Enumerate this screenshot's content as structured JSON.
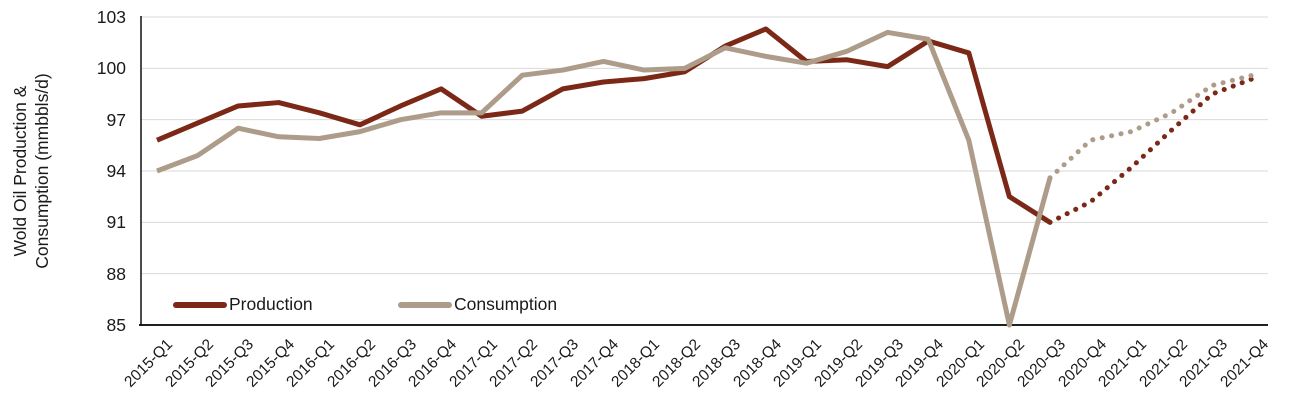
{
  "chart_data": {
    "type": "line",
    "title": "",
    "ylabel_line1": "Wold Oil Production &",
    "ylabel_line2": "Consumption (mmbbls/d)",
    "ylim": [
      85,
      103
    ],
    "yticks": [
      103,
      100,
      97,
      94,
      91,
      88,
      85
    ],
    "grid": "horizontal gridlines on, light gray",
    "legend_position": "inside bottom-left",
    "categories": [
      "2015-Q1",
      "2015-Q2",
      "2015-Q3",
      "2015-Q4",
      "2016-Q1",
      "2016-Q2",
      "2016-Q3",
      "2016-Q4",
      "2017-Q1",
      "2017-Q2",
      "2017-Q3",
      "2017-Q4",
      "2018-Q1",
      "2018-Q2",
      "2018-Q3",
      "2018-Q4",
      "2019-Q1",
      "2019-Q2",
      "2019-Q3",
      "2019-Q4",
      "2020-Q1",
      "2020-Q2",
      "2020-Q3",
      "2020-Q4",
      "2021-Q1",
      "2021-Q2",
      "2021-Q3",
      "2021-Q4"
    ],
    "series": [
      {
        "name": "Production",
        "color": "#7B2817",
        "values": [
          95.8,
          96.8,
          97.8,
          98.0,
          97.4,
          96.7,
          97.8,
          98.8,
          97.2,
          97.5,
          98.8,
          99.2,
          99.4,
          99.8,
          101.3,
          102.3,
          100.4,
          100.5,
          100.1,
          101.6,
          100.9,
          92.5,
          91.0,
          92.2,
          94.2,
          96.4,
          98.5,
          99.4
        ]
      },
      {
        "name": "Consumption",
        "color": "#AE9C8B",
        "values": [
          94.0,
          94.9,
          96.5,
          96.0,
          95.9,
          96.3,
          97.0,
          97.4,
          97.4,
          99.6,
          99.9,
          100.4,
          99.9,
          100.0,
          101.2,
          100.7,
          100.3,
          101.0,
          102.1,
          101.7,
          95.8,
          85.0,
          93.6,
          95.8,
          96.3,
          97.4,
          99.0,
          99.6
        ]
      }
    ],
    "solid_through_category": "2020-Q3",
    "forecast_start_index": 22,
    "forecast_line_style": "dotted"
  },
  "axis_style": {
    "gridline_color": "#D9D9D9",
    "axis_line_color": "#000000",
    "text_color": "#1A1A1A"
  }
}
